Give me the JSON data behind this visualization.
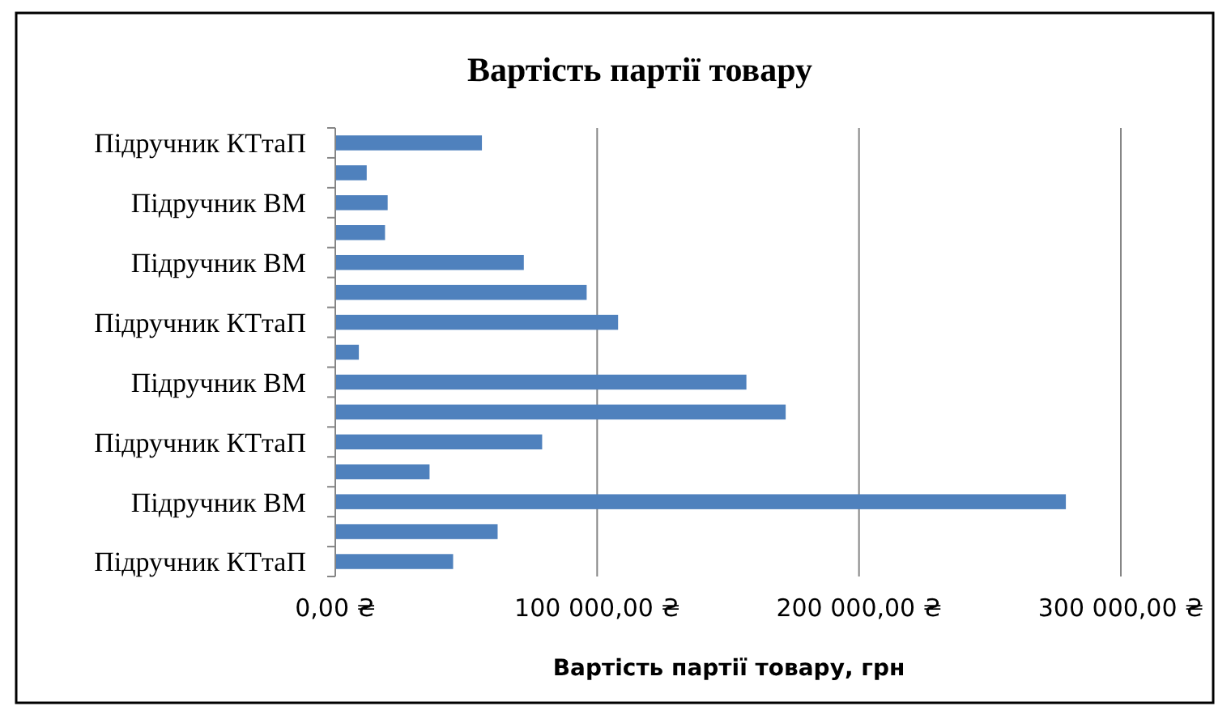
{
  "chart_data": {
    "type": "bar",
    "orientation": "horizontal",
    "title": "Вартість партії товару",
    "xlabel": "Вартість партії товару, грн",
    "categories": [
      "Підручник КТтаП",
      null,
      "Підручник ВМ",
      null,
      "Підручник ВМ",
      null,
      "Підручник КТтаП",
      null,
      "Підручник ВМ",
      null,
      "Підручник КТтаП",
      null,
      "Підручник ВМ",
      null,
      "Підручник КТтаП"
    ],
    "values": [
      56000,
      12000,
      20000,
      19000,
      72000,
      96000,
      108000,
      9000,
      157000,
      172000,
      79000,
      36000,
      279000,
      62000,
      45000
    ],
    "color": "#4f81bd",
    "xlim": [
      0,
      300000
    ],
    "xticks": [
      {
        "value": 0,
        "label": "0,00 ₴"
      },
      {
        "value": 100000,
        "label": "100 000,00 ₴"
      },
      {
        "value": 200000,
        "label": "200 000,00 ₴"
      },
      {
        "value": 300000,
        "label": "300 000,00 ₴"
      }
    ],
    "grid": "x"
  }
}
